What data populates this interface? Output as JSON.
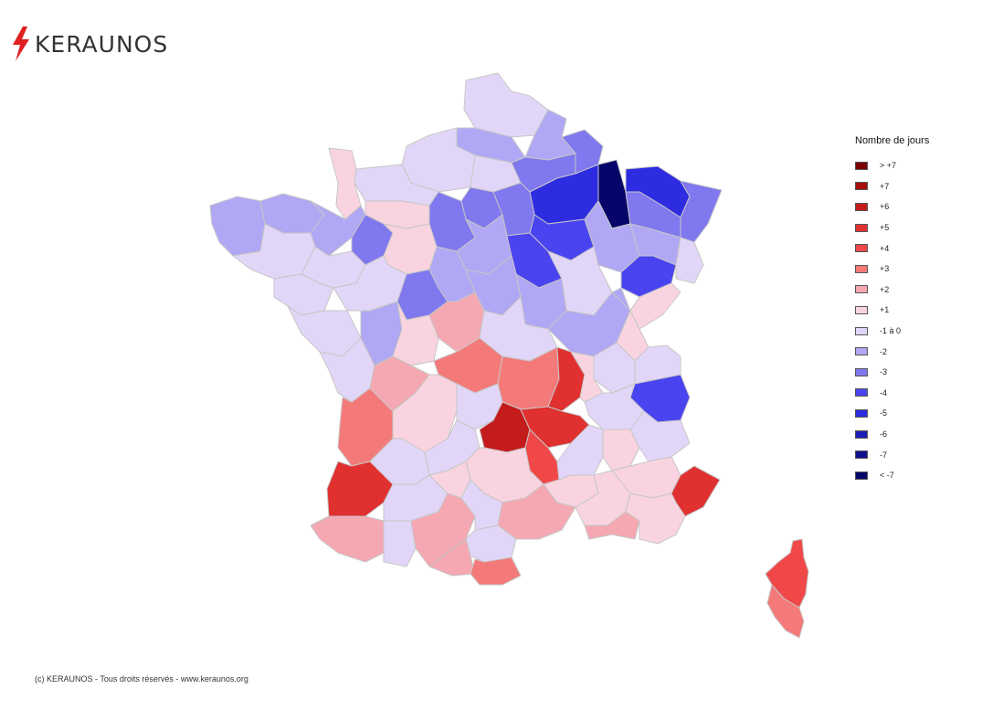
{
  "brand": {
    "name": "KERAUNOS",
    "bolt_color": "#e02020"
  },
  "legend": {
    "title": "Nombre de jours",
    "items": [
      {
        "label": "> +7",
        "color": "#7a0000"
      },
      {
        "label": "+7",
        "color": "#a61010"
      },
      {
        "label": "+6",
        "color": "#c41c1c"
      },
      {
        "label": "+5",
        "color": "#e03030"
      },
      {
        "label": "+4",
        "color": "#f04848"
      },
      {
        "label": "+3",
        "color": "#f47a7a"
      },
      {
        "label": "+2",
        "color": "#f5a8b2"
      },
      {
        "label": "+1",
        "color": "#f9d4e0"
      },
      {
        "label": "-1 à 0",
        "color": "#e2d6f8"
      },
      {
        "label": "-2",
        "color": "#b0a8f4"
      },
      {
        "label": "-3",
        "color": "#8078ee"
      },
      {
        "label": "-4",
        "color": "#4a44f0"
      },
      {
        "label": "-5",
        "color": "#2e2ce0"
      },
      {
        "label": "-6",
        "color": "#1e1cb8"
      },
      {
        "label": "-7",
        "color": "#10108e"
      },
      {
        "label": "< -7",
        "color": "#06066a"
      }
    ]
  },
  "copyright": "(c) KERAUNOS - Tous droits réservés - www.keraunos.org"
}
